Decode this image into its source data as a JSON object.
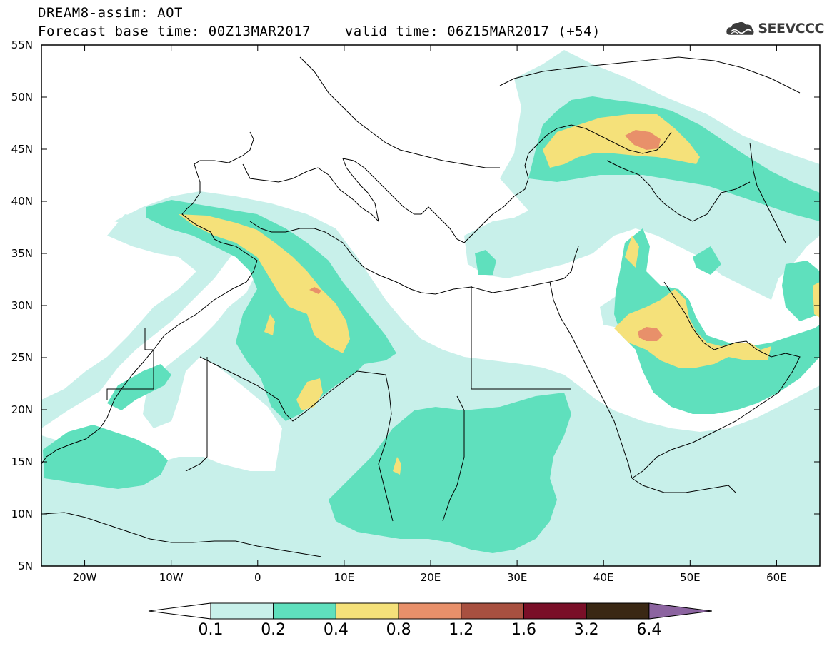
{
  "header": {
    "line1": "DREAM8-assim: AOT",
    "line2": "Forecast base time: 00Z13MAR2017    valid time: 06Z15MAR2017 (+54)"
  },
  "logo": {
    "text": "SEEVCCC",
    "icon": "cloud-icon"
  },
  "map": {
    "lon_range": [
      -25,
      65
    ],
    "lat_range": [
      5,
      55
    ],
    "lat_labels": [
      "55N",
      "50N",
      "45N",
      "40N",
      "35N",
      "30N",
      "25N",
      "20N",
      "15N",
      "10N",
      "5N"
    ],
    "lon_labels": [
      "20W",
      "10W",
      "0",
      "10E",
      "20E",
      "30E",
      "40E",
      "50E",
      "60E"
    ]
  },
  "colorbar": {
    "labels": [
      "0.1",
      "0.2",
      "0.4",
      "0.8",
      "1.2",
      "1.6",
      "3.2",
      "6.4"
    ],
    "colors": [
      "#ffffff",
      "#c8f0ea",
      "#5fe0bd",
      "#f5e17a",
      "#e8906a",
      "#a85040",
      "#7a0f28",
      "#3a2814",
      "#8c64a0"
    ]
  },
  "colors": {
    "lvl1": "#c8f0ea",
    "lvl2": "#5fe0bd",
    "lvl3": "#f5e17a",
    "lvl4": "#e8906a"
  }
}
